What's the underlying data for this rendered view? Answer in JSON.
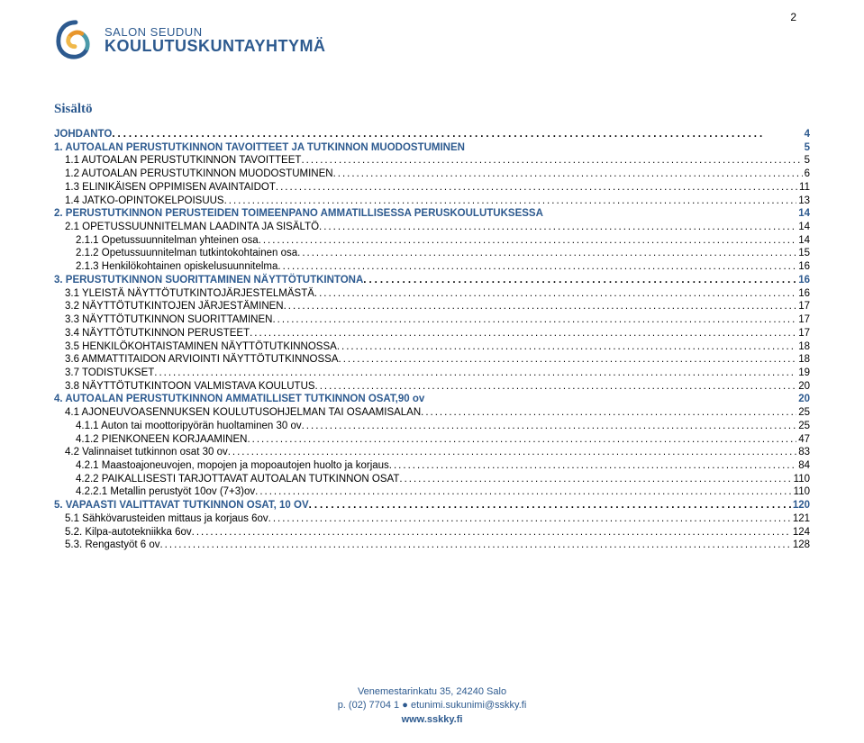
{
  "page_number": "2",
  "logo": {
    "top_text": "SALON SEUDUN",
    "bottom_text": "KOULUTUSKUNTAYHTYMÄ",
    "colors": {
      "blue": "#2d5a8f",
      "orange": "#e8962c",
      "yellow": "#f0b84a",
      "teal": "#4b9aaa"
    }
  },
  "sisalto_title": "Sisältö",
  "toc": [
    {
      "level": 1,
      "dotted": true,
      "label": "JOHDANTO",
      "page": "4"
    },
    {
      "level": 1,
      "dotted": false,
      "label": "1.  AUTOALAN PERUSTUTKINNON TAVOITTEET JA TUTKINNON MUODOSTUMINEN",
      "page": "5"
    },
    {
      "level": 2,
      "label": "1.1 AUTOALAN PERUSTUTKINNON TAVOITTEET",
      "page": "5"
    },
    {
      "level": 2,
      "label": "1.2 AUTOALAN PERUSTUTKINNON MUODOSTUMINEN",
      "page": "6"
    },
    {
      "level": 2,
      "label": "1.3 ELINIKÄISEN OPPIMISEN AVAINTAIDOT",
      "page": "11"
    },
    {
      "level": 2,
      "label": "1.4 JATKO-OPINTOKELPOISUUS",
      "page": "13"
    },
    {
      "level": 1,
      "dotted": false,
      "label": "2.  PERUSTUTKINNON PERUSTEIDEN TOIMEENPANO AMMATILLISESSA PERUSKOULUTUKSESSA",
      "page": "14"
    },
    {
      "level": 2,
      "label": "2.1 OPETUSSUUNNITELMAN LAADINTA JA SISÄLTÖ",
      "page": "14"
    },
    {
      "level": 3,
      "label": "2.1.1 Opetussuunnitelman yhteinen osa",
      "page": "14"
    },
    {
      "level": 3,
      "label": "2.1.2 Opetussuunnitelman tutkintokohtainen osa",
      "page": "15"
    },
    {
      "level": 3,
      "label": "2.1.3 Henkilökohtainen opiskelusuunnitelma",
      "page": "16"
    },
    {
      "level": 1,
      "dotted": true,
      "label": "3.  PERUSTUTKINNON SUORITTAMINEN NÄYTTÖTUTKINTONA",
      "page": "16"
    },
    {
      "level": 2,
      "label": "3.1 YLEISTÄ NÄYTTÖTUTKINTOJÄRJESTELMÄSTÄ",
      "page": "16"
    },
    {
      "level": 2,
      "label": "3.2 NÄYTTÖTUTKINTOJEN JÄRJESTÄMINEN",
      "page": "17"
    },
    {
      "level": 2,
      "label": "3.3 NÄYTTÖTUTKINNON SUORITTAMINEN",
      "page": "17"
    },
    {
      "level": 2,
      "label": "3.4 NÄYTTÖTUTKINNON PERUSTEET",
      "page": "17"
    },
    {
      "level": 2,
      "label": "3.5 HENKILÖKOHTAISTAMINEN NÄYTTÖTUTKINNOSSA",
      "page": "18"
    },
    {
      "level": 2,
      "label": "3.6 AMMATTITAIDON ARVIOINTI NÄYTTÖTUTKINNOSSA",
      "page": "18"
    },
    {
      "level": 2,
      "label": "3.7 TODISTUKSET",
      "page": "19"
    },
    {
      "level": 2,
      "label": "3.8 NÄYTTÖTUTKINTOON VALMISTAVA KOULUTUS",
      "page": "20"
    },
    {
      "level": 1,
      "dotted": false,
      "label": "4.  AUTOALAN PERUSTUTKINNON AMMATILLISET TUTKINNON OSAT,90 ov",
      "page": "20"
    },
    {
      "level": 2,
      "label": "4.1 AJONEUVOASENNUKSEN KOULUTUSOHJELMAN TAI OSAAMISALAN",
      "page": "25"
    },
    {
      "level": 3,
      "label": "4.1.1 Auton tai moottoripyörän huoltaminen 30 ov",
      "page": "25"
    },
    {
      "level": 3,
      "label": "4.1.2 PIENKONEEN KORJAAMINEN",
      "page": "47"
    },
    {
      "level": 2,
      "label": "4.2 Valinnaiset tutkinnon osat 30 ov",
      "page": "83"
    },
    {
      "level": 3,
      "label": "4.2.1 Maastoajoneuvojen, mopojen ja mopoautojen huolto ja korjaus",
      "page": "84"
    },
    {
      "level": 3,
      "label": "4.2.2 PAIKALLISESTI TARJOTTAVAT AUTOALAN TUTKINNON OSAT",
      "page": "110"
    },
    {
      "level": 3,
      "label": "4.2.2.1 Metallin perustyöt 10ov (7+3)ov",
      "page": "110"
    },
    {
      "level": 1,
      "dotted": true,
      "label": "5.  VAPAASTI VALITTAVAT TUTKINNON OSAT, 10 OV",
      "page": "120"
    },
    {
      "level": 2,
      "label": "5.1 Sähkövarusteiden mittaus ja korjaus 6ov",
      "page": "121"
    },
    {
      "level": 2,
      "label": "5.2. Kilpa-autotekniikka  6ov",
      "page": "124"
    },
    {
      "level": 2,
      "label": "5.3. Rengastyöt 6 ov",
      "page": "128"
    }
  ],
  "footer": {
    "line1": "Venemestarinkatu 35, 24240 Salo",
    "line2_prefix": "p. (02) 7704 1 ",
    "line2_bullet": "●",
    "line2_suffix": " etunimi.sukunimi@sskky.fi",
    "domain": "www.sskky.fi"
  }
}
